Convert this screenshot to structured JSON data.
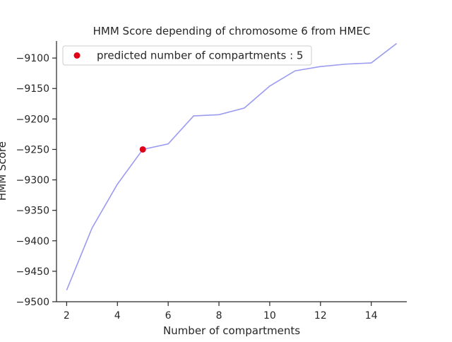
{
  "chart_data": {
    "type": "line",
    "title": "HMM Score depending of chromosome 6 from HMEC",
    "xlabel": "Number of compartments",
    "ylabel": "HMM Score",
    "xlim": [
      1.6,
      15.4
    ],
    "ylim": [
      -9500,
      -9072
    ],
    "x_ticks": [
      2,
      4,
      6,
      8,
      10,
      12,
      14
    ],
    "y_ticks": [
      -9500,
      -9450,
      -9400,
      -9350,
      -9300,
      -9250,
      -9200,
      -9150,
      -9100
    ],
    "grid": false,
    "legend_position": "top-left",
    "series": [
      {
        "x": [
          2,
          3,
          4,
          5,
          6,
          7,
          8,
          9,
          10,
          11,
          12,
          13,
          14,
          15
        ],
        "values": [
          -9481,
          -9379,
          -9307,
          -9250,
          -9241,
          -9195,
          -9193,
          -9182,
          -9146,
          -9121,
          -9114,
          -9110,
          -9108,
          -9076
        ],
        "color": "#9b9bf0"
      }
    ],
    "highlight_point": {
      "x": 5,
      "y": -9250,
      "label": "predicted number of compartments : 5",
      "color": "#e00018"
    }
  }
}
